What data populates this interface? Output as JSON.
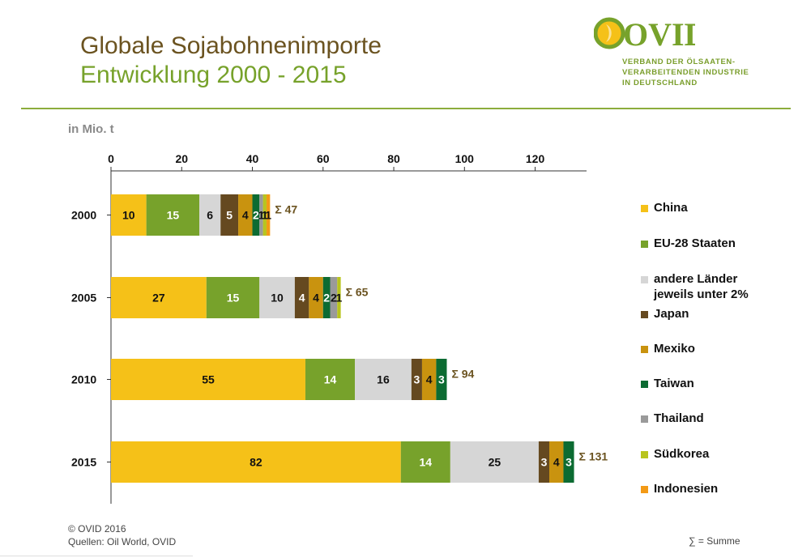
{
  "header": {
    "title_line1": "Globale Sojabohnenimporte",
    "title_line2": "Entwicklung 2000 - 2015"
  },
  "logo": {
    "wordmark": "OVID",
    "subtitle_lines": [
      "VERBAND DER ÖLSAATEN-",
      "VERARBEITENDEN INDUSTRIE",
      "IN DEUTSCHLAND"
    ]
  },
  "footer": {
    "copyright": "© OVID 2016",
    "sources": "Quellen: Oil World, OVID",
    "sum_note": "∑ = Summe"
  },
  "colors": {
    "China": "#f5c118",
    "EU-28 Staaten": "#77a22b",
    "andere Länder jeweils unter 2%": "#d6d6d6",
    "Japan": "#654920",
    "Mexiko": "#c9930f",
    "Taiwan": "#0c6b32",
    "Thailand": "#9a9a9a",
    "Südkorea": "#b8c41e",
    "Indonesien": "#f39a16",
    "sum_label": "#6b5320"
  },
  "chart_data": {
    "type": "bar",
    "orientation": "horizontal",
    "stacked": true,
    "unit_label": "in Mio. t",
    "categories": [
      "2000",
      "2005",
      "2010",
      "2015"
    ],
    "xlim": [
      0,
      134
    ],
    "xticks": [
      0,
      20,
      40,
      60,
      80,
      100,
      120
    ],
    "series": [
      {
        "name": "China",
        "values": [
          10,
          27,
          55,
          82
        ]
      },
      {
        "name": "EU-28 Staaten",
        "values": [
          15,
          15,
          14,
          14
        ]
      },
      {
        "name": "andere Länder jeweils unter 2%",
        "values": [
          6,
          10,
          16,
          25
        ]
      },
      {
        "name": "Japan",
        "values": [
          5,
          4,
          3,
          3
        ]
      },
      {
        "name": "Mexiko",
        "values": [
          4,
          4,
          4,
          4
        ]
      },
      {
        "name": "Taiwan",
        "values": [
          2,
          2,
          3,
          3
        ]
      },
      {
        "name": "Thailand",
        "values": [
          1,
          2,
          0,
          0
        ]
      },
      {
        "name": "Südkorea",
        "values": [
          1,
          1,
          0,
          0
        ]
      },
      {
        "name": "Indonesien",
        "values": [
          1,
          0,
          0,
          0
        ]
      }
    ],
    "totals": [
      "Σ 47",
      "Σ 65",
      "Σ 94",
      "Σ 131"
    ],
    "legend_position": "right"
  }
}
